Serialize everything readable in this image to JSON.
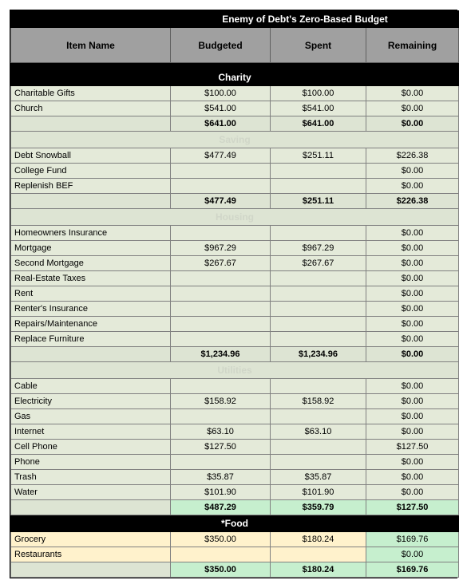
{
  "title": "Enemy of Debt's Zero-Based Budget",
  "headers": {
    "item": "Item Name",
    "budgeted": "Budgeted",
    "spent": "Spent",
    "remaining": "Remaining"
  },
  "colors": {
    "black": "#000000",
    "white": "#ffffff",
    "header_gray": "#a0a0a0",
    "row_bg": "#e4ead9",
    "subtotal_bg": "#dde4d3",
    "green_bg": "#c6efce",
    "yellow_bg": "#fff2cc",
    "border": "#808080",
    "faded_text": "#d0d6c8"
  },
  "sections": [
    {
      "name": "Charity",
      "header_style": "black",
      "rows": [
        {
          "item": "Charitable Gifts",
          "budgeted": "$100.00",
          "spent": "$100.00",
          "remaining": "$0.00"
        },
        {
          "item": "Church",
          "budgeted": "$541.00",
          "spent": "$541.00",
          "remaining": "$0.00"
        }
      ],
      "subtotal": {
        "budgeted": "$641.00",
        "spent": "$641.00",
        "remaining": "$0.00",
        "style": "normal"
      }
    },
    {
      "name": "Saving",
      "header_style": "faded",
      "rows": [
        {
          "item": "Debt Snowball",
          "budgeted": "$477.49",
          "spent": "$251.11",
          "remaining": "$226.38"
        },
        {
          "item": "College Fund",
          "budgeted": "",
          "spent": "",
          "remaining": "$0.00"
        },
        {
          "item": "Replenish BEF",
          "budgeted": "",
          "spent": "",
          "remaining": "$0.00"
        }
      ],
      "subtotal": {
        "budgeted": "$477.49",
        "spent": "$251.11",
        "remaining": "$226.38",
        "style": "normal"
      }
    },
    {
      "name": "Housing",
      "header_style": "faded",
      "rows": [
        {
          "item": "Homeowners Insurance",
          "budgeted": "",
          "spent": "",
          "remaining": "$0.00"
        },
        {
          "item": "Mortgage",
          "budgeted": "$967.29",
          "spent": "$967.29",
          "remaining": "$0.00"
        },
        {
          "item": "Second Mortgage",
          "budgeted": "$267.67",
          "spent": "$267.67",
          "remaining": "$0.00"
        },
        {
          "item": "Real-Estate Taxes",
          "budgeted": "",
          "spent": "",
          "remaining": "$0.00"
        },
        {
          "item": "Rent",
          "budgeted": "",
          "spent": "",
          "remaining": "$0.00"
        },
        {
          "item": "Renter's Insurance",
          "budgeted": "",
          "spent": "",
          "remaining": "$0.00"
        },
        {
          "item": "Repairs/Maintenance",
          "budgeted": "",
          "spent": "",
          "remaining": "$0.00"
        },
        {
          "item": "Replace Furniture",
          "budgeted": "",
          "spent": "",
          "remaining": "$0.00"
        }
      ],
      "subtotal": {
        "budgeted": "$1,234.96",
        "spent": "$1,234.96",
        "remaining": "$0.00",
        "style": "normal"
      }
    },
    {
      "name": "Utilities",
      "header_style": "faded",
      "rows": [
        {
          "item": "Cable",
          "budgeted": "",
          "spent": "",
          "remaining": "$0.00"
        },
        {
          "item": "Electricity",
          "budgeted": "$158.92",
          "spent": "$158.92",
          "remaining": "$0.00"
        },
        {
          "item": "Gas",
          "budgeted": "",
          "spent": "",
          "remaining": "$0.00"
        },
        {
          "item": "Internet",
          "budgeted": "$63.10",
          "spent": "$63.10",
          "remaining": "$0.00"
        },
        {
          "item": "Cell Phone",
          "budgeted": "$127.50",
          "spent": "",
          "remaining": "$127.50"
        },
        {
          "item": "Phone",
          "budgeted": "",
          "spent": "",
          "remaining": "$0.00"
        },
        {
          "item": "Trash",
          "budgeted": "$35.87",
          "spent": "$35.87",
          "remaining": "$0.00"
        },
        {
          "item": "Water",
          "budgeted": "$101.90",
          "spent": "$101.90",
          "remaining": "$0.00"
        }
      ],
      "subtotal": {
        "budgeted": "$487.29",
        "spent": "$359.79",
        "remaining": "$127.50",
        "style": "green"
      }
    },
    {
      "name": "*Food",
      "header_style": "black",
      "rows": [
        {
          "item": "Grocery",
          "budgeted": "$350.00",
          "spent": "$180.24",
          "remaining": "$169.76",
          "row_style": "yellow"
        },
        {
          "item": "Restaurants",
          "budgeted": "",
          "spent": "",
          "remaining": "$0.00",
          "row_style": "yellow"
        }
      ],
      "subtotal": {
        "budgeted": "$350.00",
        "spent": "$180.24",
        "remaining": "$169.76",
        "style": "green"
      }
    }
  ]
}
